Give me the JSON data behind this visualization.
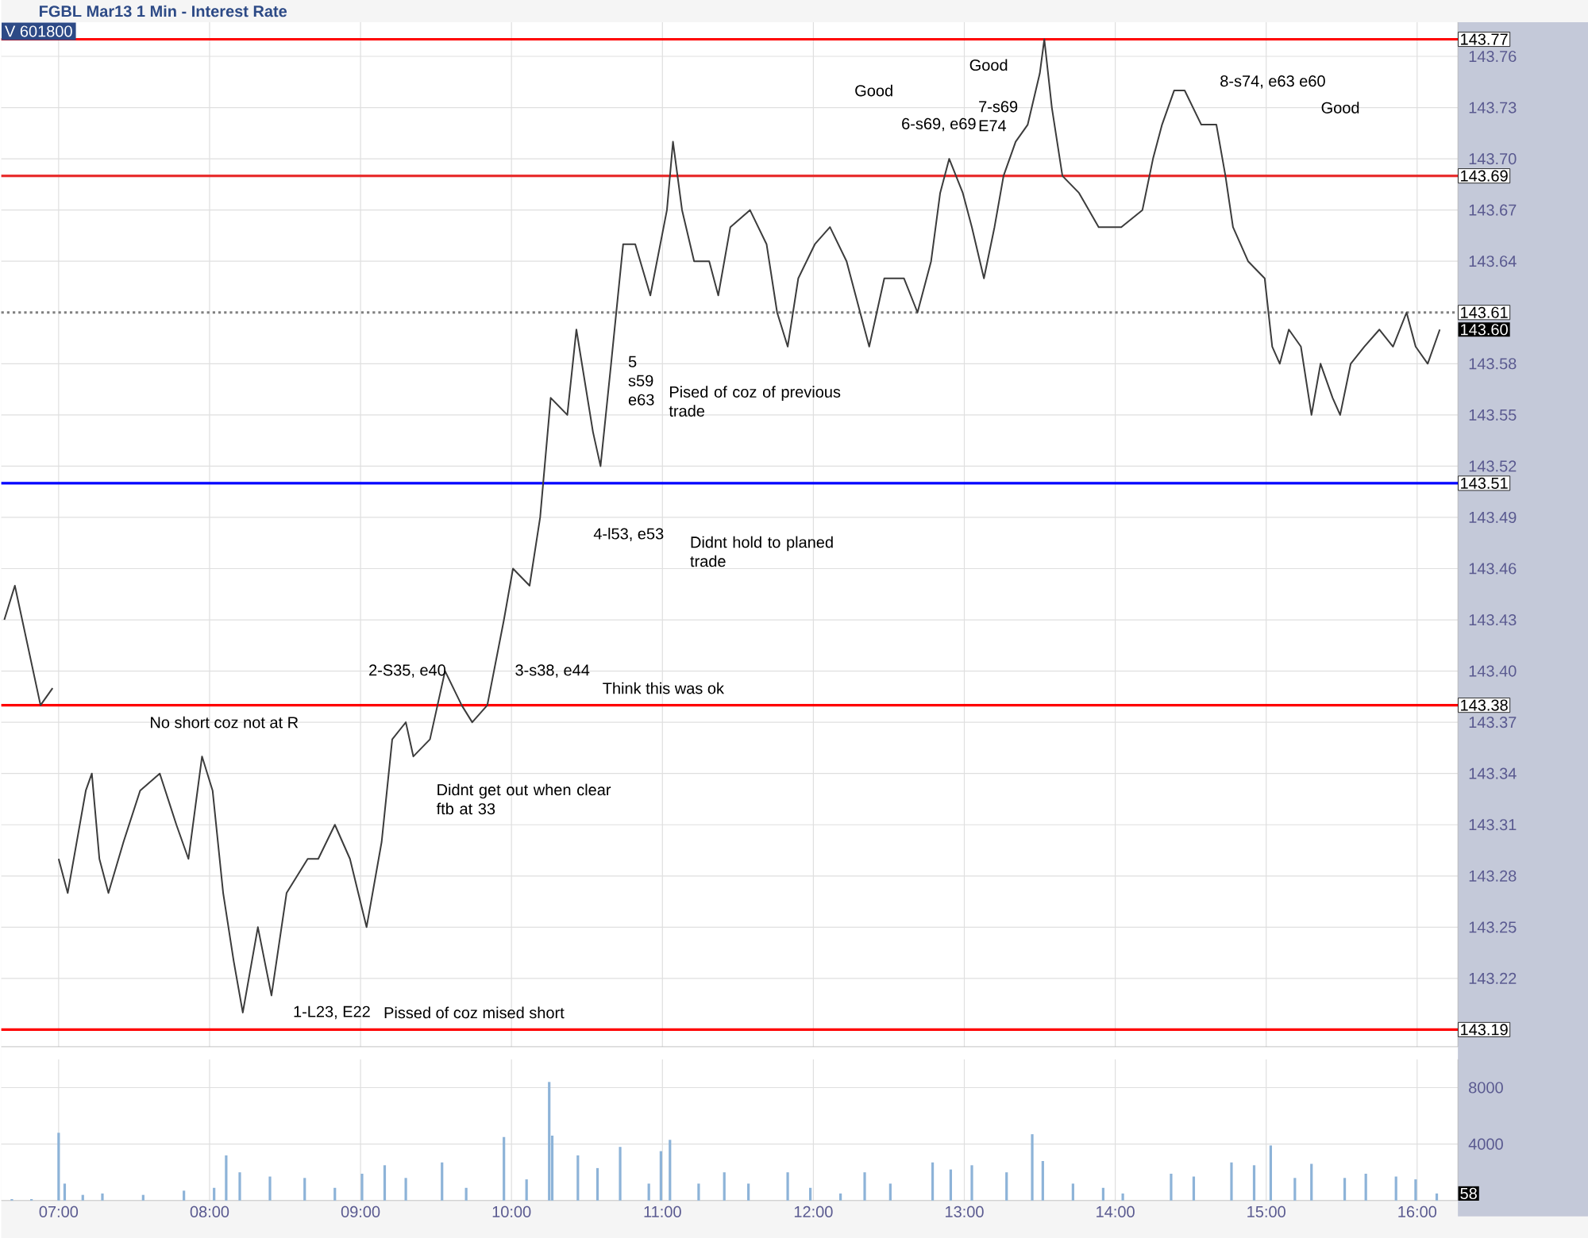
{
  "chart_data": [
    {
      "type": "line",
      "title": "FGBL Mar13 1 Min - Interest Rate",
      "series": [
        {
          "color": "#3c3c3c",
          "x": [
            6.64,
            6.71,
            6.88,
            6.96,
            6.98,
            7.0,
            7.06,
            7.18,
            7.22,
            7.27,
            7.33,
            7.43,
            7.54,
            7.67,
            7.78,
            7.86,
            7.95,
            8.02,
            8.09,
            8.16,
            8.22,
            8.32,
            8.41,
            8.51,
            8.65,
            8.72,
            8.83,
            8.93,
            9.04,
            9.14,
            9.21,
            9.3,
            9.35,
            9.46,
            9.56,
            9.67,
            9.74,
            9.84,
            9.95,
            10.01,
            10.12,
            10.19,
            10.26,
            10.37,
            10.43,
            10.54,
            10.59,
            10.66,
            10.74,
            10.82,
            10.92,
            11.03,
            11.07,
            11.13,
            11.21,
            11.31,
            11.37,
            11.45,
            11.58,
            11.69,
            11.76,
            11.83,
            11.9,
            12.01,
            12.11,
            12.22,
            12.31,
            12.37,
            12.47,
            12.6,
            12.69,
            12.78,
            12.84,
            12.9,
            12.99,
            13.05,
            13.13,
            13.2,
            13.26,
            13.34,
            13.42,
            13.5,
            13.53,
            13.58,
            13.65,
            13.76,
            13.89,
            14.04,
            14.18,
            14.25,
            14.31,
            14.39,
            14.46,
            14.57,
            14.67,
            14.73,
            14.78,
            14.88,
            14.99,
            15.04,
            15.09,
            15.15,
            15.23,
            15.3,
            15.36,
            15.44,
            15.49,
            15.56,
            15.65,
            15.75,
            15.84,
            15.93,
            15.99,
            16.07,
            16.15
          ],
          "values": [
            143.43,
            143.45,
            143.38,
            143.39,
            null,
            143.29,
            143.27,
            143.33,
            143.34,
            143.29,
            143.27,
            143.3,
            143.33,
            143.34,
            143.31,
            143.29,
            143.35,
            143.33,
            143.27,
            143.23,
            143.2,
            143.25,
            143.21,
            143.27,
            143.29,
            143.29,
            143.31,
            143.29,
            143.25,
            143.3,
            143.36,
            143.37,
            143.35,
            143.36,
            143.4,
            143.38,
            143.37,
            143.38,
            143.43,
            143.46,
            143.45,
            143.49,
            143.56,
            143.55,
            143.6,
            143.54,
            143.52,
            143.58,
            143.65,
            143.65,
            143.62,
            143.67,
            143.71,
            143.67,
            143.64,
            143.64,
            143.62,
            143.66,
            143.67,
            143.65,
            143.61,
            143.59,
            143.63,
            143.65,
            143.66,
            143.64,
            143.61,
            143.59,
            143.63,
            143.63,
            143.61,
            143.64,
            143.68,
            143.7,
            143.68,
            143.66,
            143.63,
            143.66,
            143.69,
            143.71,
            143.72,
            143.75,
            143.77,
            143.73,
            143.69,
            143.68,
            143.66,
            143.66,
            143.67,
            143.7,
            143.72,
            143.74,
            143.74,
            143.72,
            143.72,
            143.69,
            143.66,
            143.64,
            143.63,
            143.59,
            143.58,
            143.6,
            143.59,
            143.55,
            143.58,
            143.56,
            143.55,
            143.58,
            143.59,
            143.6,
            143.59,
            143.61,
            143.59,
            143.58,
            143.6
          ]
        }
      ],
      "xlim": [
        6.62,
        16.27
      ],
      "xticks": [
        7,
        8,
        9,
        10,
        11,
        12,
        13,
        14,
        15,
        16
      ],
      "tick_labels": "y",
      "ylim": [
        143.18,
        143.78
      ],
      "yticks": [
        143.22,
        143.25,
        143.28,
        143.31,
        143.34,
        143.37,
        {
          "value": 143.4,
          "label": "143.40"
        },
        143.43,
        143.46,
        143.49,
        143.52,
        143.55,
        143.58,
        143.64,
        143.67,
        {
          "value": 143.7,
          "label": "143.70"
        },
        143.73,
        143.76
      ],
      "grid": true,
      "ref_lines": [
        {
          "axis": "y",
          "value": 143.77,
          "label": "143.77",
          "color": "#ff0000",
          "line_style": "solid"
        },
        {
          "axis": "y",
          "value": 143.69,
          "label": "143.69",
          "color": "#e83030",
          "line_style": "solid"
        },
        {
          "axis": "y",
          "value": 143.61,
          "label": "143.61",
          "color": "#808080",
          "line_style": "dotted"
        },
        {
          "axis": "y",
          "value": 143.51,
          "label": "143.51",
          "color": "#0000ff",
          "line_style": "solid"
        },
        {
          "axis": "y",
          "value": 143.38,
          "label": "143.38",
          "color": "#ff0000",
          "line_style": "solid"
        },
        {
          "axis": "y",
          "value": 143.19,
          "label": "143.19",
          "color": "#ff0000",
          "line_style": "solid"
        }
      ],
      "annotations": [
        "V 601800",
        "143.60",
        "1-L23, E22",
        "Pissed of coz mised short",
        "No short coz not at R",
        "2-S35, e40",
        "Didnt get out when clear\nftb at 33",
        "3-s38, e44",
        "Think this was ok",
        "4-l53, e53",
        "Didnt hold to planed\ntrade",
        "5\ns59\ne63",
        "Pised of coz of previous\ntrade",
        "Good",
        "6-s69, e69",
        "Good",
        "7-s69\nE74",
        "8-s74, e63 e60",
        "Good"
      ]
    },
    {
      "type": "bar",
      "color": "#8db3d8",
      "x": [
        6.69,
        6.82,
        7.0,
        7.04,
        7.16,
        7.29,
        7.56,
        7.83,
        8.03,
        8.11,
        8.2,
        8.4,
        8.63,
        8.83,
        9.01,
        9.16,
        9.3,
        9.54,
        9.7,
        9.95,
        10.1,
        10.25,
        10.27,
        10.44,
        10.57,
        10.72,
        10.91,
        10.99,
        11.05,
        11.24,
        11.41,
        11.57,
        11.83,
        11.98,
        12.18,
        12.34,
        12.51,
        12.79,
        12.91,
        13.05,
        13.28,
        13.45,
        13.52,
        13.72,
        13.92,
        14.05,
        14.37,
        14.52,
        14.77,
        14.92,
        15.03,
        15.19,
        15.3,
        15.52,
        15.66,
        15.86,
        15.99,
        16.13
      ],
      "values": [
        100,
        100,
        4800,
        1200,
        400,
        500,
        400,
        700,
        900,
        3200,
        2000,
        1700,
        1600,
        900,
        1900,
        2500,
        1600,
        2700,
        900,
        4500,
        1500,
        8400,
        4600,
        3200,
        2300,
        3800,
        1200,
        3500,
        4300,
        1200,
        2000,
        1200,
        2000,
        900,
        500,
        2000,
        1200,
        2700,
        2200,
        2500,
        2000,
        4700,
        2800,
        1200,
        900,
        500,
        1900,
        1700,
        2700,
        2500,
        3900,
        1600,
        2600,
        1600,
        1900,
        1700,
        1500,
        500
      ],
      "xlim": [
        6.62,
        16.27
      ],
      "xticks": [
        {
          "value": 7,
          "label": "07:00"
        },
        {
          "value": 8,
          "label": "08:00"
        },
        {
          "value": 9,
          "label": "09:00"
        },
        {
          "value": 10,
          "label": "10:00"
        },
        {
          "value": 11,
          "label": "11:00"
        },
        {
          "value": 12,
          "label": "12:00"
        },
        {
          "value": 13,
          "label": "13:00"
        },
        {
          "value": 14,
          "label": "14:00"
        },
        {
          "value": 15,
          "label": "15:00"
        },
        {
          "value": 16,
          "label": "16:00"
        }
      ],
      "ylim": [
        0,
        10000
      ],
      "yticks": [
        4000,
        8000
      ],
      "grid": true,
      "annotations": [
        "58"
      ]
    }
  ]
}
